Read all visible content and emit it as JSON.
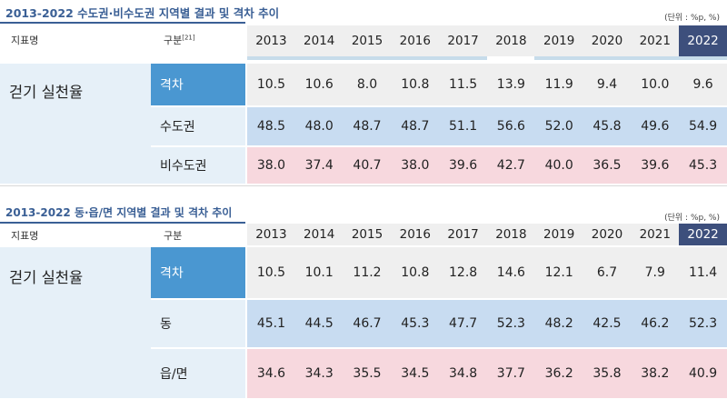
{
  "colors": {
    "title": "#3a5f95",
    "highlight_year": "#3d4f7c",
    "gap_category": "#4a97d1",
    "gap_row": "#efefef",
    "region_a_row": "#c8dcf1",
    "region_b_row": "#f7d8de"
  },
  "table1": {
    "title": "2013-2022 수도권·비수도권 지역별 결과 및 격차 추이",
    "unit": "(단위 : %p, %)",
    "header_indicator": "지표명",
    "header_category": "구분",
    "header_category_note": "[21]",
    "years": [
      "2013",
      "2014",
      "2015",
      "2016",
      "2017",
      "2018",
      "2019",
      "2020",
      "2021",
      "2022"
    ],
    "indicator": "걷기 실천율",
    "rows": [
      {
        "label": "격차",
        "values": [
          "10.5",
          "10.6",
          "8.0",
          "10.8",
          "11.5",
          "13.9",
          "11.9",
          "9.4",
          "10.0",
          "9.6"
        ]
      },
      {
        "label": "수도권",
        "values": [
          "48.5",
          "48.0",
          "48.7",
          "48.7",
          "51.1",
          "56.6",
          "52.0",
          "45.8",
          "49.6",
          "54.9"
        ]
      },
      {
        "label": "비수도권",
        "values": [
          "38.0",
          "37.4",
          "40.7",
          "38.0",
          "39.6",
          "42.7",
          "40.0",
          "36.5",
          "39.6",
          "45.3"
        ]
      }
    ]
  },
  "table2": {
    "title": "2013-2022 동·읍/면 지역별 결과 및 격차 추이",
    "unit": "(단위 : %p, %)",
    "header_indicator": "지표명",
    "header_category": "구분",
    "years": [
      "2013",
      "2014",
      "2015",
      "2016",
      "2017",
      "2018",
      "2019",
      "2020",
      "2021",
      "2022"
    ],
    "indicator": "걷기 실천율",
    "rows": [
      {
        "label": "격차",
        "values": [
          "10.5",
          "10.1",
          "11.2",
          "10.8",
          "12.8",
          "14.6",
          "12.1",
          "6.7",
          "7.9",
          "11.4"
        ]
      },
      {
        "label": "동",
        "values": [
          "45.1",
          "44.5",
          "46.7",
          "45.3",
          "47.7",
          "52.3",
          "48.2",
          "42.5",
          "46.2",
          "52.3"
        ]
      },
      {
        "label": "읍/면",
        "values": [
          "34.6",
          "34.3",
          "35.5",
          "34.5",
          "34.8",
          "37.7",
          "36.2",
          "35.8",
          "38.2",
          "40.9"
        ]
      }
    ]
  }
}
